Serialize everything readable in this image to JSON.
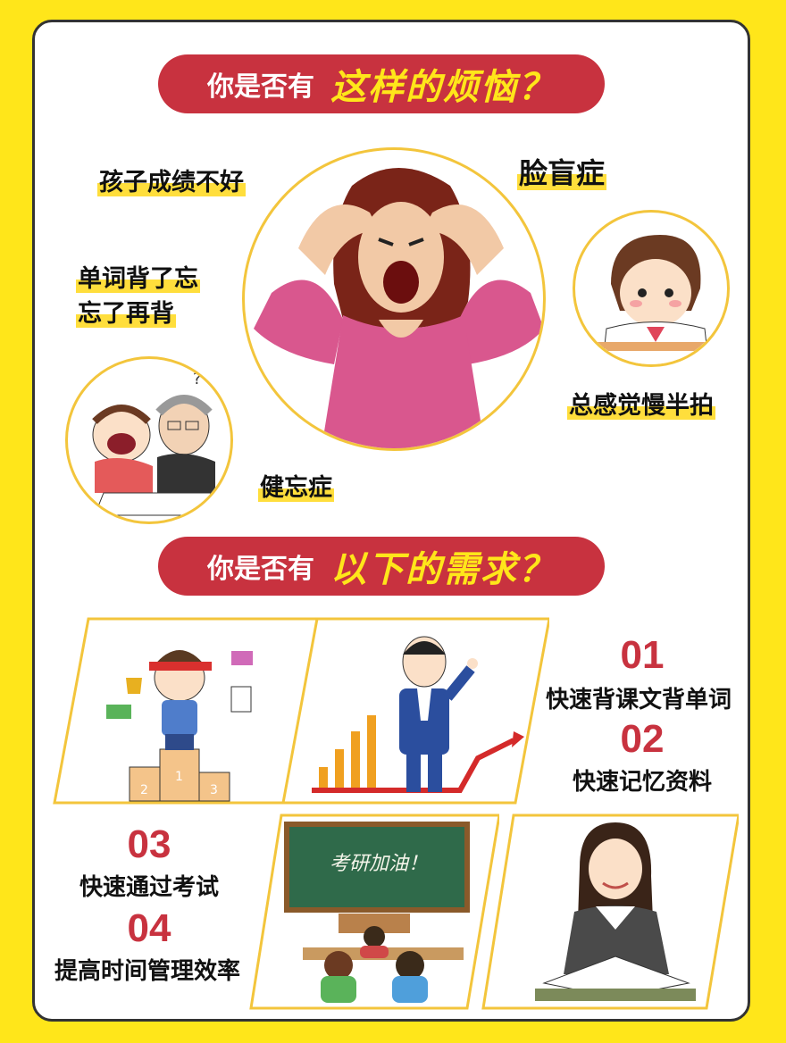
{
  "banner1": {
    "plain": "你是否有",
    "highlight": "这样的烦恼？"
  },
  "worries": [
    {
      "label": "孩子成绩不好"
    },
    {
      "label": "脸盲症"
    },
    {
      "label_line1": "单词背了忘",
      "label_line2": "忘了再背"
    },
    {
      "label": "总感觉慢半拍"
    },
    {
      "label": "健忘症"
    }
  ],
  "banner2": {
    "plain": "你是否有",
    "highlight": "以下的需求？"
  },
  "needs": [
    {
      "num": "01",
      "label": "快速背课文背单词"
    },
    {
      "num": "02",
      "label": "快速记忆资料"
    },
    {
      "num": "03",
      "label": "快速通过考试"
    },
    {
      "num": "04",
      "label": "提高时间管理效率"
    }
  ],
  "blackboard_text": "考研加油！",
  "podium_labels": [
    "1",
    "2",
    "3"
  ],
  "colors": {
    "banner": "#C8323F",
    "accent": "#FFE61A",
    "highlight": "#FFDE3C",
    "frame": "#F3C53C"
  }
}
